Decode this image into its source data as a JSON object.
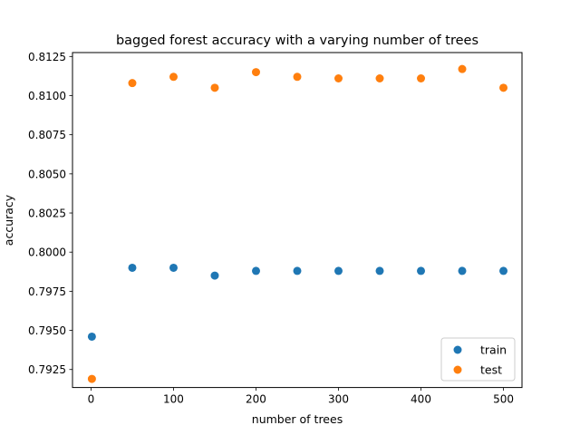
{
  "chart_data": {
    "type": "scatter",
    "title": "bagged forest accuracy with a varying number of trees",
    "xlabel": "number of trees",
    "ylabel": "accuracy",
    "xlim": [
      -22.5,
      522.5
    ],
    "ylim": [
      0.79135,
      0.81275
    ],
    "xticks": [
      0,
      100,
      200,
      300,
      400,
      500
    ],
    "xtick_labels": [
      "0",
      "100",
      "200",
      "300",
      "400",
      "500"
    ],
    "yticks": [
      0.7925,
      0.795,
      0.7975,
      0.8,
      0.8025,
      0.805,
      0.8075,
      0.81,
      0.8125
    ],
    "ytick_labels": [
      "0.7925",
      "0.7950",
      "0.7975",
      "0.8000",
      "0.8025",
      "0.8050",
      "0.8075",
      "0.8100",
      "0.8125"
    ],
    "grid": false,
    "legend_position": "lower right",
    "x": [
      1,
      50,
      100,
      150,
      200,
      250,
      300,
      350,
      400,
      450,
      500
    ],
    "series": [
      {
        "name": "train",
        "color": "#1f77b4",
        "values": [
          0.7946,
          0.799,
          0.799,
          0.7985,
          0.7988,
          0.7988,
          0.7988,
          0.7988,
          0.7988,
          0.7988,
          0.7988
        ]
      },
      {
        "name": "test",
        "color": "#ff7f0e",
        "values": [
          0.7919,
          0.8108,
          0.8112,
          0.8105,
          0.8115,
          0.8112,
          0.8111,
          0.8111,
          0.8111,
          0.8117,
          0.8105
        ]
      }
    ]
  }
}
